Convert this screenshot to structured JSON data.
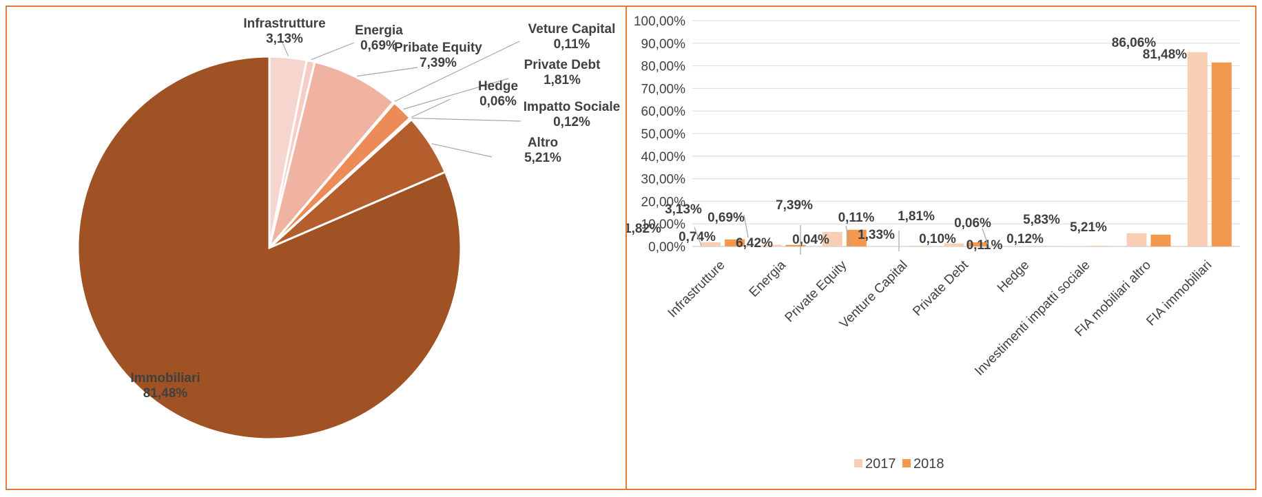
{
  "chart_data": [
    {
      "type": "pie",
      "title": "",
      "colors": {
        "Infrastrutture": "#f7d5cf",
        "Energia": "#f6cdc4",
        "Pribate Equity": "#f1b3a1",
        "Veture Capital": "#eda08a",
        "Private Debt": "#ec8b58",
        "Hedge": "#e57c45",
        "Impatto Sociale": "#d8743c",
        "Altro": "#b55e2d",
        "Immobiliari": "#a05224"
      },
      "slices": [
        {
          "label": "Infrastrutture",
          "value": 3.13,
          "text": "3,13%"
        },
        {
          "label": "Energia",
          "value": 0.69,
          "text": "0,69%"
        },
        {
          "label": "Pribate Equity",
          "value": 7.39,
          "text": "7,39%"
        },
        {
          "label": "Veture Capital",
          "value": 0.11,
          "text": "0,11%"
        },
        {
          "label": "Private Debt",
          "value": 1.81,
          "text": "1,81%"
        },
        {
          "label": "Hedge",
          "value": 0.06,
          "text": "0,06%"
        },
        {
          "label": "Impatto Sociale",
          "value": 0.12,
          "text": "0,12%"
        },
        {
          "label": "Altro",
          "value": 5.21,
          "text": "5,21%"
        },
        {
          "label": "Immobiliari",
          "value": 81.48,
          "text": "81,48%"
        }
      ]
    },
    {
      "type": "bar",
      "title": "",
      "xlabel": "",
      "ylabel": "",
      "ylim": [
        0,
        100
      ],
      "y_ticks": [
        "0,00%",
        "10,00%",
        "20,00%",
        "30,00%",
        "40,00%",
        "50,00%",
        "60,00%",
        "70,00%",
        "80,00%",
        "90,00%",
        "100,00%"
      ],
      "grid": true,
      "legend_position": "bottom",
      "categories": [
        "Infrastrutture",
        "Energia",
        "Private Equity",
        "Venture Capital",
        "Private Debt",
        "Hedge",
        "Investimenti impatti sociale",
        "FIA mobiliari altro",
        "FIA immobiliari"
      ],
      "series": [
        {
          "name": "2017",
          "color": "#f8cfb4",
          "values": [
            1.82,
            0.74,
            6.42,
            0.04,
            1.33,
            0.1,
            0.11,
            5.83,
            86.06
          ],
          "labels": [
            "1,82%",
            "0,74%",
            "6,42%",
            "0,04%",
            "1,33%",
            "0,10%",
            "0,11%",
            "5,83%",
            "86,06%"
          ]
        },
        {
          "name": "2018",
          "color": "#f2984f",
          "values": [
            3.13,
            0.69,
            7.39,
            0.11,
            1.81,
            0.06,
            0.12,
            5.21,
            81.48
          ],
          "labels": [
            "3,13%",
            "0,69%",
            "7,39%",
            "0,11%",
            "1,81%",
            "0,06%",
            "0,12%",
            "5,21%",
            "81,48%"
          ]
        }
      ]
    }
  ]
}
